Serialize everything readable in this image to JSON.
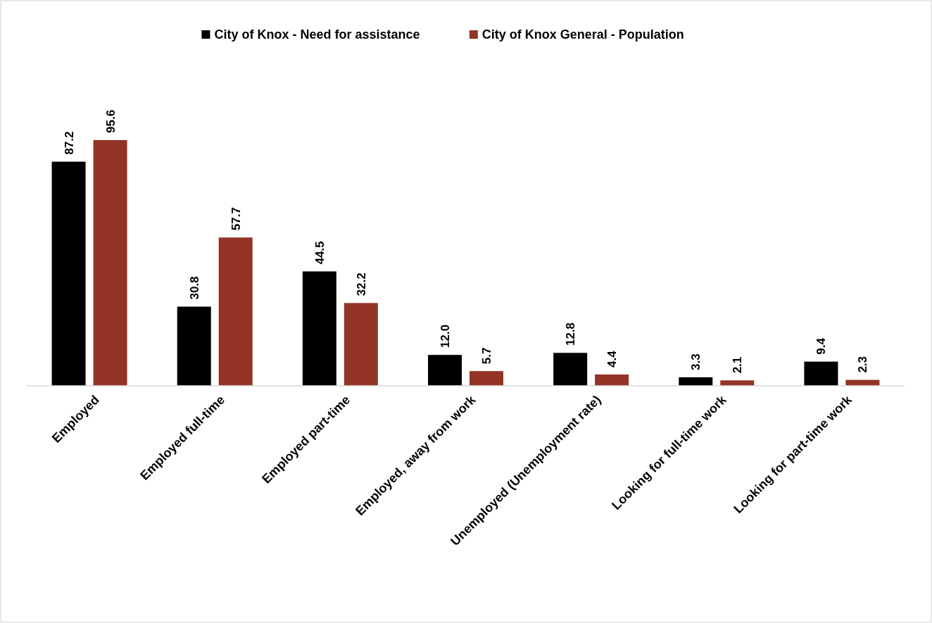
{
  "chart_data": {
    "type": "bar",
    "categories": [
      "Employed",
      "Employed full-time",
      "Employed part-time",
      "Employed, away from work",
      "Unemployed (Unemployment rate)",
      "Looking for full-time work",
      "Looking for part-time work"
    ],
    "series": [
      {
        "name": "City of Knox - Need for assistance",
        "color": "#000000",
        "values": [
          87.2,
          30.8,
          44.5,
          12.0,
          12.8,
          3.3,
          9.4
        ],
        "value_labels": [
          "87.2",
          "30.8",
          "44.5",
          "12.0",
          "12.8",
          "3.3",
          "9.4"
        ]
      },
      {
        "name": "City of Knox General - Population",
        "color": "#933426",
        "values": [
          95.6,
          57.7,
          32.2,
          5.7,
          4.4,
          2.1,
          2.3
        ],
        "value_labels": [
          "95.6",
          "57.7",
          "32.2",
          "5.7",
          "4.4",
          "2.1",
          "2.3"
        ]
      }
    ],
    "legend": "top",
    "tick_labels": "x"
  }
}
